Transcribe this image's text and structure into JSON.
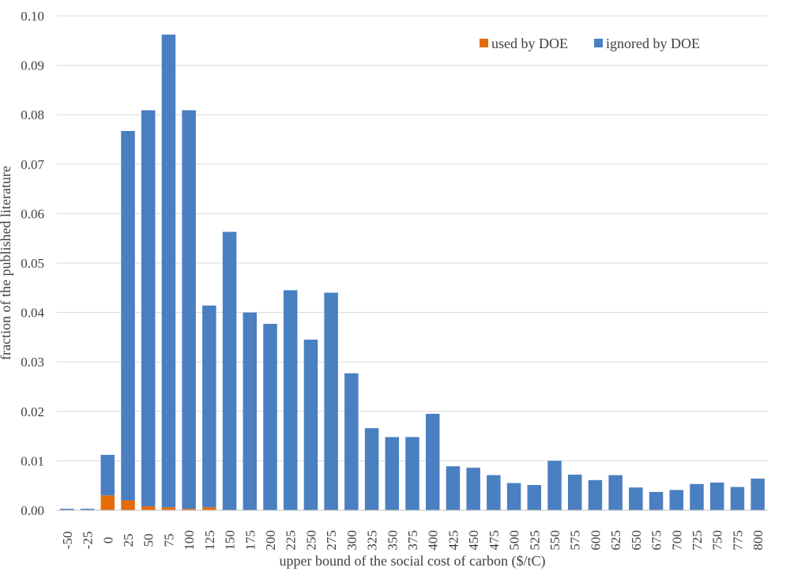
{
  "chart_data": {
    "type": "bar",
    "stacked": true,
    "title": "",
    "xlabel": "upper bound of the social cost of carbon ($/tC)",
    "ylabel": "fraction of the published literature",
    "ylim": [
      0,
      0.1
    ],
    "yticks": [
      "0.00",
      "0.01",
      "0.02",
      "0.03",
      "0.04",
      "0.05",
      "0.06",
      "0.07",
      "0.08",
      "0.09",
      "0.10"
    ],
    "grid": true,
    "legend_position": "top-right",
    "categories": [
      "-50",
      "-25",
      "0",
      "25",
      "50",
      "75",
      "100",
      "125",
      "150",
      "175",
      "200",
      "225",
      "250",
      "275",
      "300",
      "325",
      "350",
      "375",
      "400",
      "425",
      "450",
      "475",
      "500",
      "525",
      "550",
      "575",
      "600",
      "625",
      "650",
      "675",
      "700",
      "725",
      "750",
      "775",
      "800"
    ],
    "series": [
      {
        "name": "used by DOE",
        "color": "#e46c0a",
        "values": [
          0,
          0,
          0.003,
          0.002,
          0.0008,
          0.0006,
          0.0003,
          0.0006,
          0,
          0,
          0,
          0,
          0,
          0,
          0,
          0,
          0,
          0,
          0,
          0,
          0,
          0,
          0,
          0,
          0,
          0,
          0,
          0,
          0,
          0,
          0,
          0,
          0,
          0,
          0
        ]
      },
      {
        "name": "ignored by DOE",
        "color": "#4a7fc1",
        "values": [
          0.0003,
          0.0003,
          0.0082,
          0.0747,
          0.0801,
          0.0956,
          0.0806,
          0.0408,
          0.0563,
          0.04,
          0.0377,
          0.0445,
          0.0345,
          0.044,
          0.0277,
          0.0166,
          0.0148,
          0.0148,
          0.0195,
          0.0089,
          0.0086,
          0.0071,
          0.0055,
          0.0051,
          0.01,
          0.0072,
          0.0061,
          0.0071,
          0.0046,
          0.0037,
          0.0041,
          0.0053,
          0.0056,
          0.0047,
          0.0064
        ]
      }
    ]
  }
}
